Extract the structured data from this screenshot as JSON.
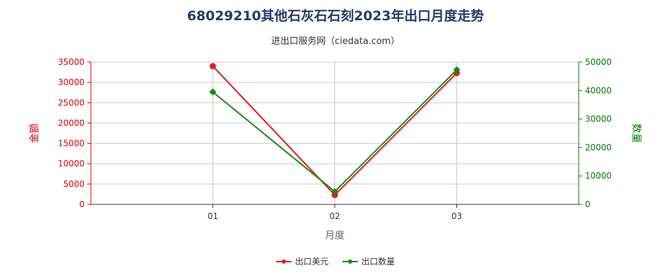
{
  "title": "68029210其他石灰石石刻2023年出口月度走势",
  "subtitle": "进出口服务网（ciedata.com）",
  "colors": {
    "left_axis": "#dd0000",
    "right_axis": "#007700",
    "grid": "#cccccc"
  },
  "chart_data": {
    "type": "line",
    "categories": [
      "01",
      "02",
      "03"
    ],
    "xlabel": "月度",
    "ylabel_left": "金额",
    "ylabel_right": "数量",
    "ylim_left": [
      0,
      35000
    ],
    "ylim_right": [
      0,
      50000
    ],
    "yticks_left": [
      0,
      5000,
      10000,
      15000,
      20000,
      25000,
      30000,
      35000
    ],
    "yticks_right": [
      0,
      10000,
      20000,
      30000,
      40000,
      50000
    ],
    "grid": true,
    "legend_position": "bottom",
    "series": [
      {
        "name": "出口美元",
        "axis": "left",
        "color": "#e31a1c",
        "marker": "circle",
        "values": [
          34000,
          2300,
          32300
        ]
      },
      {
        "name": "出口数量",
        "axis": "right",
        "color": "#138a13",
        "marker": "diamond",
        "values": [
          39500,
          4500,
          47300
        ]
      }
    ]
  }
}
